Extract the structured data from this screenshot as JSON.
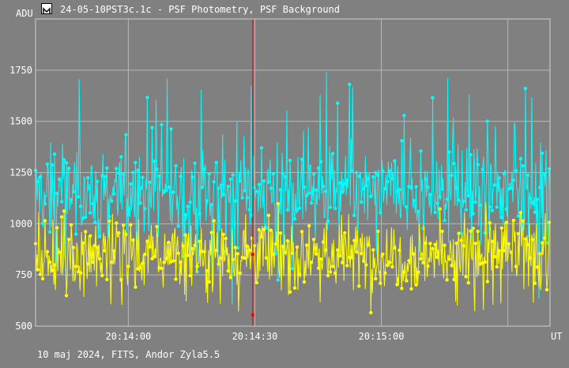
{
  "window": {
    "title": "24-05-10PST3c.1c - PSF Photometry, PSF Background"
  },
  "footer": {
    "text": "10 maj 2024, FITS, Andor Zyla5.5"
  },
  "colors": {
    "background": "#808080",
    "grid": "#b8b8b8",
    "series_cyan": "#00ffff",
    "series_yellow": "#ffff00",
    "cursor": "#ff0000"
  },
  "chart_data": {
    "type": "line",
    "ylabel": "ADU",
    "xlabel": "UT",
    "yticks": [
      "500",
      "750",
      "1000",
      "1250",
      "1500",
      "1750"
    ],
    "ytick_values": [
      500,
      750,
      1000,
      1250,
      1500,
      1750
    ],
    "xticks": [
      "20:14:00",
      "20:14:30",
      "20:15:00"
    ],
    "xtick_values_s": [
      0,
      30,
      60
    ],
    "xlim_s": [
      -22,
      100
    ],
    "ylim": [
      500,
      2000
    ],
    "cursor_x_s": 29.5,
    "series": [
      {
        "color": "#00ffff",
        "mean": 1150,
        "spread": 110,
        "spike_max": 1750
      },
      {
        "color": "#ffff00",
        "mean": 850,
        "spread": 95,
        "spike_max": 1000
      }
    ],
    "points_per_series": 650,
    "grid": true
  }
}
